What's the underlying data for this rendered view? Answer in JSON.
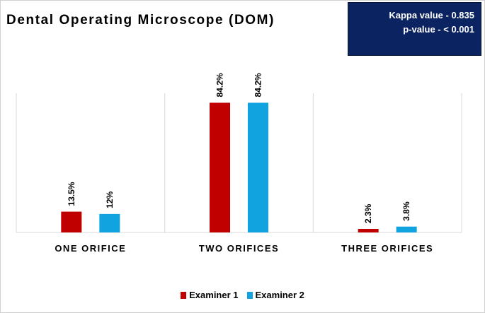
{
  "chart_data": {
    "type": "bar",
    "title": "Dental Operating Microscope (DOM)",
    "categories": [
      "ONE ORIFICE",
      "TWO ORIFICES",
      "THREE ORIFICES"
    ],
    "series": [
      {
        "name": "Examiner 1",
        "values": [
          13.5,
          84.2,
          2.3
        ],
        "labels": [
          "13.5%",
          "84.2%",
          "2.3%"
        ],
        "color": "#c00000"
      },
      {
        "name": "Examiner 2",
        "values": [
          12,
          84.2,
          3.8
        ],
        "labels": [
          "12%",
          "84.2%",
          "3.8%"
        ],
        "color": "#10a3e0"
      }
    ],
    "ylim": [
      0,
      100
    ],
    "grid": false,
    "legend_position": "bottom"
  },
  "stats": {
    "kappa": "Kappa value - 0.835",
    "p_value": "p-value - < 0.001"
  }
}
